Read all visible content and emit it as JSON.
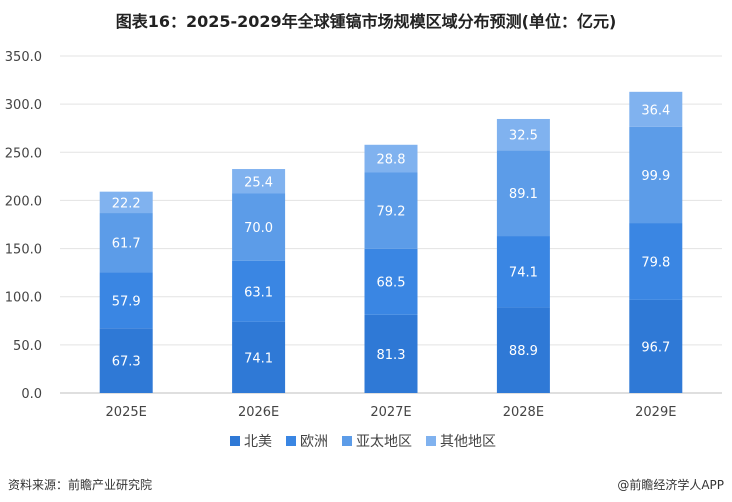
{
  "header": {
    "title": "图表16：2025-2029年全球锺镐市场规模区域分布预测(单位：亿元)"
  },
  "footer": {
    "source": "资料来源：前瞻产业研究院",
    "brand": "@前瞻经济学人APP"
  },
  "chart_data": {
    "type": "bar",
    "stacked": true,
    "title": "图表16：2025-2029年全球锺镐市场规模区域分布预测(单位：亿元)",
    "categories": [
      "2025E",
      "2026E",
      "2027E",
      "2028E",
      "2029E"
    ],
    "ylim": [
      0,
      350
    ],
    "yticks": [
      "0.0",
      "50.0",
      "100.0",
      "150.0",
      "200.0",
      "250.0",
      "300.0",
      "350.0"
    ],
    "grid": true,
    "legend_position": "bottom",
    "series": [
      {
        "name": "北美",
        "color": "#2f79d6",
        "values": [
          67.3,
          74.1,
          81.3,
          88.9,
          96.7
        ],
        "labels": [
          "67.3",
          "74.1",
          "81.3",
          "88.9",
          "96.7"
        ]
      },
      {
        "name": "欧洲",
        "color": "#3a86e3",
        "values": [
          57.9,
          63.1,
          68.5,
          74.1,
          79.8
        ],
        "labels": [
          "57.9",
          "63.1",
          "68.5",
          "74.1",
          "79.8"
        ]
      },
      {
        "name": "亚太地区",
        "color": "#5c9ce8",
        "values": [
          61.7,
          70.0,
          79.2,
          89.1,
          99.9
        ],
        "labels": [
          "61.7",
          "70.0",
          "79.2",
          "89.1",
          "99.9"
        ]
      },
      {
        "name": "其他地区",
        "color": "#80b2ef",
        "values": [
          22.2,
          25.4,
          28.8,
          32.5,
          36.4
        ],
        "labels": [
          "22.2",
          "25.4",
          "28.8",
          "32.5",
          "36.4"
        ]
      }
    ]
  }
}
